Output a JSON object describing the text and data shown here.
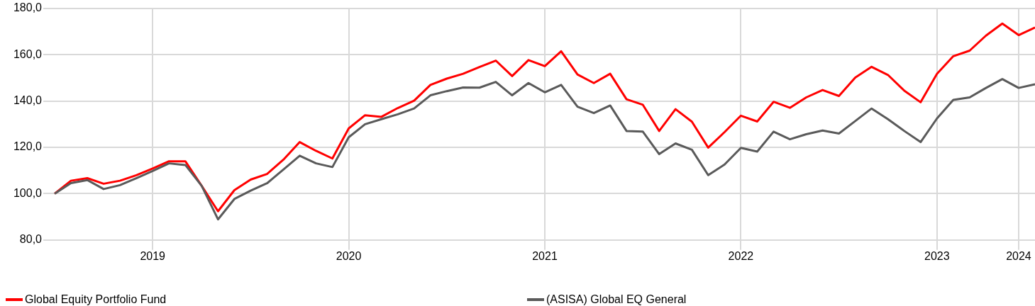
{
  "chart_data": {
    "type": "line",
    "categories": [
      null,
      null,
      null,
      null,
      null,
      null,
      "2019",
      null,
      null,
      null,
      null,
      null,
      null,
      null,
      null,
      null,
      null,
      null,
      "2020",
      null,
      null,
      null,
      null,
      null,
      null,
      null,
      null,
      null,
      null,
      null,
      "2021",
      null,
      null,
      null,
      null,
      null,
      null,
      null,
      null,
      null,
      null,
      null,
      "2022",
      null,
      null,
      null,
      null,
      null,
      null,
      null,
      null,
      null,
      null,
      null,
      "2023",
      null,
      null,
      null,
      null,
      "2024",
      null
    ],
    "series": [
      {
        "name": "Global Equity Portfolio Fund",
        "color": "#ff0000",
        "values": [
          100,
          105.6,
          106.7,
          104.3,
          105.6,
          108,
          110.9,
          114,
          114,
          103.4,
          92.4,
          101.5,
          106.1,
          108.5,
          114.7,
          122.3,
          118.5,
          115.2,
          128.2,
          133.9,
          133.2,
          137,
          140.2,
          147,
          149.7,
          151.8,
          154.7,
          157.5,
          150.8,
          157.7,
          155.1,
          161.5,
          151.5,
          147.8,
          151.8,
          140.8,
          138.4,
          127.1,
          136.5,
          131.1,
          119.9,
          126.6,
          133.7,
          131.2,
          139.7,
          137.1,
          141.6,
          144.8,
          142.2,
          150.2,
          154.8,
          151.3,
          144.5,
          139.5,
          151.8,
          159.4,
          161.8,
          168.3,
          173.5,
          168.5,
          171.8
        ]
      },
      {
        "name": "(ASISA) Global EQ General",
        "color": "#5a5a5a",
        "values": [
          100,
          104.6,
          105.9,
          102,
          103.7,
          106.7,
          109.8,
          113.1,
          112.4,
          103.4,
          88.9,
          97.7,
          101.3,
          104.5,
          110.4,
          116.4,
          113.1,
          111.5,
          124.4,
          130,
          132.2,
          134.3,
          136.8,
          142.5,
          144.3,
          145.9,
          145.8,
          148.3,
          142.5,
          147.8,
          143.8,
          147,
          137.6,
          134.8,
          138.1,
          127.1,
          126.8,
          117.1,
          121.7,
          119,
          108,
          112.6,
          119.8,
          118.2,
          126.8,
          123.5,
          125.7,
          127.3,
          126,
          131.4,
          136.8,
          132.2,
          127.1,
          122.3,
          132.5,
          140.5,
          141.6,
          145.7,
          149.5,
          145.7,
          147.3
        ]
      }
    ],
    "ylim": [
      80,
      180
    ],
    "yticks": [
      {
        "value": 80,
        "label": "80,0"
      },
      {
        "value": 100,
        "label": "100,0"
      },
      {
        "value": 120,
        "label": "120,0"
      },
      {
        "value": 140,
        "label": "140,0"
      },
      {
        "value": 160,
        "label": "160,0"
      },
      {
        "value": 180,
        "label": "180,0"
      }
    ],
    "grid": true,
    "legend": "bottom",
    "marker": "none",
    "line_style": "solid"
  }
}
